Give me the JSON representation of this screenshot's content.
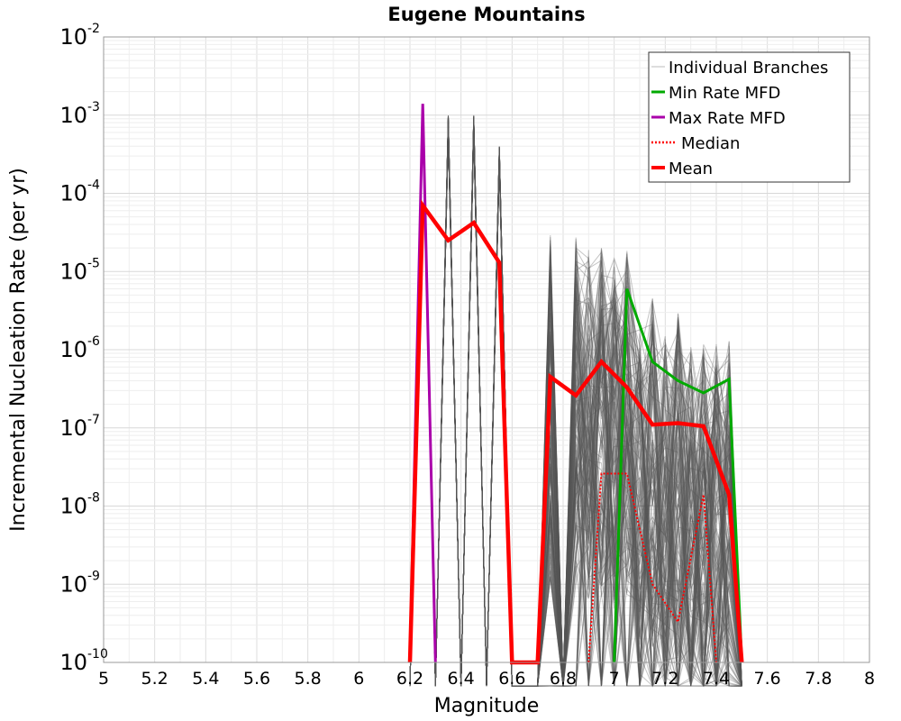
{
  "chart_data": {
    "type": "line",
    "title": "Eugene Mountains",
    "xlabel": "Magnitude",
    "ylabel": "Incremental Nucleation Rate (per yr)",
    "xlim": [
      5,
      8
    ],
    "ylim": [
      1e-10,
      0.01
    ],
    "yscale": "log",
    "grid": true,
    "legend_position": "top-right",
    "x_ticks": [
      "5",
      "5.2",
      "5.4",
      "5.6",
      "5.8",
      "6",
      "6.2",
      "6.4",
      "6.6",
      "6.8",
      "7",
      "7.2",
      "7.4",
      "7.6",
      "7.8",
      "8"
    ],
    "y_ticks": [
      {
        "base": "10",
        "exp": "-10"
      },
      {
        "base": "10",
        "exp": "-9"
      },
      {
        "base": "10",
        "exp": "-8"
      },
      {
        "base": "10",
        "exp": "-7"
      },
      {
        "base": "10",
        "exp": "-6"
      },
      {
        "base": "10",
        "exp": "-5"
      },
      {
        "base": "10",
        "exp": "-4"
      },
      {
        "base": "10",
        "exp": "-3"
      },
      {
        "base": "10",
        "exp": "-2"
      }
    ],
    "series": [
      {
        "name": "Individual Branches",
        "color": "#555555",
        "style": "thin-ensemble",
        "envelope_x": [
          6.2,
          6.25,
          6.3,
          6.35,
          6.4,
          6.45,
          6.5,
          6.55,
          6.6,
          6.7,
          6.75,
          6.8,
          6.85,
          6.9,
          6.95,
          7.0,
          7.05,
          7.1,
          7.15,
          7.2,
          7.25,
          7.3,
          7.35,
          7.4,
          7.45,
          7.5
        ],
        "envelope_max": [
          1e-10,
          0.0014,
          1e-10,
          0.001,
          1e-10,
          0.001,
          1e-10,
          0.0004,
          1e-10,
          1e-10,
          3e-05,
          1e-10,
          3e-05,
          2e-05,
          2e-05,
          1.5e-05,
          2e-05,
          2e-06,
          5e-06,
          1.5e-06,
          3e-06,
          1.2e-06,
          1.2e-06,
          1.2e-06,
          1.5e-06,
          1e-10
        ]
      },
      {
        "name": "Min Rate MFD",
        "color": "#00aa00",
        "style": "solid",
        "x": [
          7.0,
          7.05,
          7.15,
          7.25,
          7.35,
          7.45,
          7.5
        ],
        "values": [
          1e-10,
          6e-06,
          7e-07,
          4e-07,
          2.8e-07,
          4.2e-07,
          1e-10
        ]
      },
      {
        "name": "Max Rate MFD",
        "color": "#aa00aa",
        "style": "solid",
        "x": [
          6.2,
          6.25,
          6.3
        ],
        "values": [
          1e-10,
          0.0014,
          1e-10
        ]
      },
      {
        "name": "Median",
        "color": "#ff0000",
        "style": "dotted",
        "x": [
          6.9,
          6.95,
          7.05,
          7.15,
          7.25,
          7.35,
          7.4
        ],
        "values": [
          1e-10,
          2.6e-08,
          2.6e-08,
          1e-09,
          3.3e-10,
          1.4e-08,
          1e-10
        ]
      },
      {
        "name": "Mean",
        "color": "#ff0000",
        "style": "bold",
        "x": [
          6.2,
          6.25,
          6.35,
          6.45,
          6.55,
          6.6,
          6.7,
          6.75,
          6.85,
          6.95,
          7.05,
          7.15,
          7.25,
          7.35,
          7.45,
          7.5
        ],
        "values": [
          1e-10,
          7e-05,
          2.5e-05,
          4.2e-05,
          1.3e-05,
          1e-10,
          1e-10,
          4.5e-07,
          2.6e-07,
          7e-07,
          3.3e-07,
          1.1e-07,
          1.15e-07,
          1.05e-07,
          1.4e-08,
          1e-10
        ]
      }
    ],
    "legend": [
      {
        "label": "Individual Branches",
        "color": "#bbbbbb",
        "style": "thin"
      },
      {
        "label": "Min Rate MFD",
        "color": "#00aa00",
        "style": "solid"
      },
      {
        "label": "Max Rate MFD",
        "color": "#aa00aa",
        "style": "solid"
      },
      {
        "label": "Median",
        "color": "#ff0000",
        "style": "dotted"
      },
      {
        "label": "Mean",
        "color": "#ff0000",
        "style": "bold"
      }
    ]
  }
}
